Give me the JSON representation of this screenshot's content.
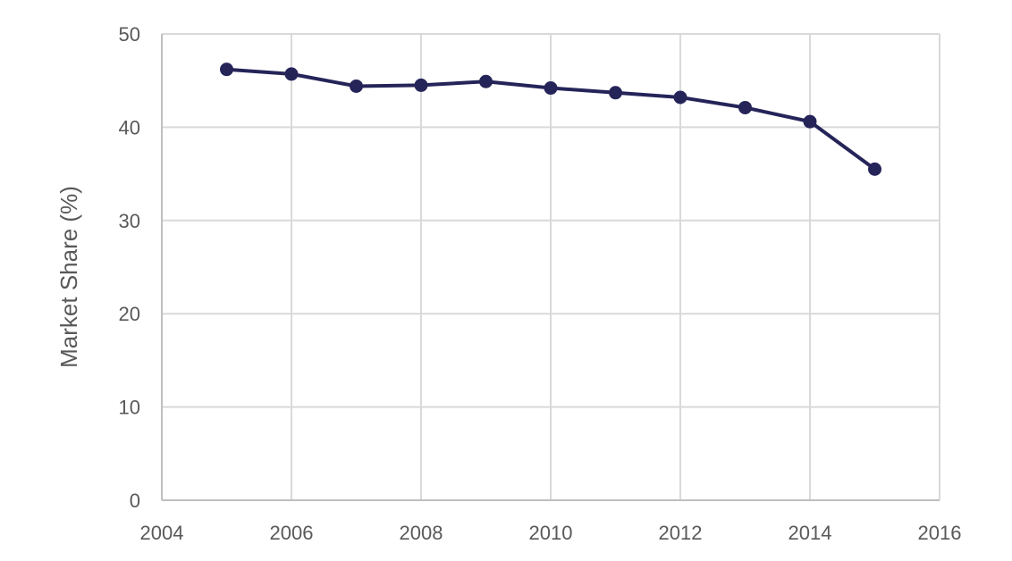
{
  "chart_data": {
    "type": "line",
    "title": "",
    "xlabel": "",
    "ylabel": "Market Share (%)",
    "xlim": [
      2004,
      2016
    ],
    "ylim": [
      0,
      50
    ],
    "xticks": [
      2004,
      2006,
      2008,
      2010,
      2012,
      2014,
      2016
    ],
    "yticks": [
      0,
      10,
      20,
      30,
      40,
      50
    ],
    "grid": true,
    "legend": "none",
    "series": [
      {
        "color": "#252459",
        "x": [
          2005,
          2006,
          2007,
          2008,
          2009,
          2010,
          2011,
          2012,
          2013,
          2014,
          2015
        ],
        "y": [
          46.2,
          45.7,
          44.4,
          44.5,
          44.9,
          44.2,
          43.7,
          43.2,
          42.1,
          40.6,
          35.5
        ]
      }
    ]
  }
}
